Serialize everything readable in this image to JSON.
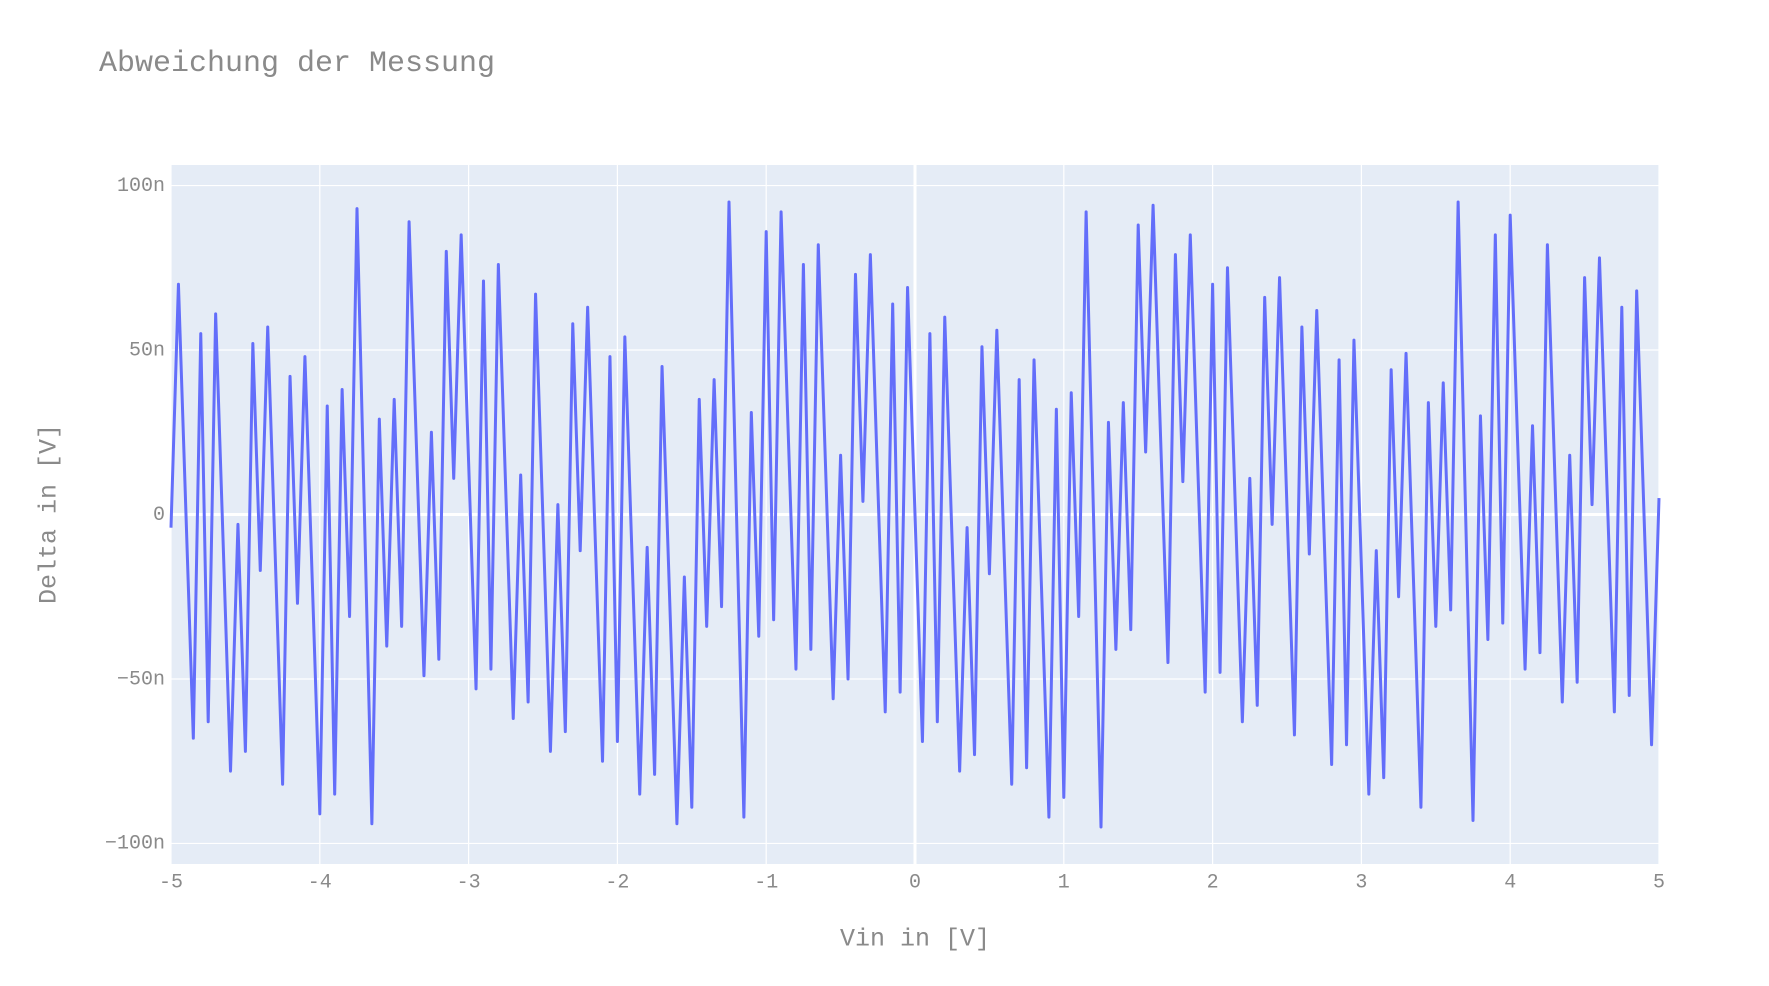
{
  "chart_data": {
    "type": "line",
    "title": "Abweichung der Messung",
    "x_label": "Vin in [V]",
    "y_label": "Delta in [V]",
    "color": "#636efa",
    "grid": true,
    "xlim": [
      -5,
      5
    ],
    "xticks": [
      -5,
      -4,
      -3,
      -2,
      -1,
      0,
      1,
      2,
      3,
      4,
      5
    ],
    "ylim": [
      -1.0625e-07,
      1.0625e-07
    ],
    "yticks": [
      {
        "value": -1e-07,
        "label": "−100n"
      },
      {
        "value": -5e-08,
        "label": "−50n"
      },
      {
        "value": 0,
        "label": "0"
      },
      {
        "value": 5e-08,
        "label": "50n"
      },
      {
        "value": 1e-07,
        "label": "100n"
      }
    ],
    "x": [
      -5,
      -4.95,
      -4.9,
      -4.85,
      -4.8,
      -4.75,
      -4.7,
      -4.65,
      -4.6,
      -4.55,
      -4.5,
      -4.45,
      -4.4,
      -4.35,
      -4.3,
      -4.25,
      -4.2,
      -4.15,
      -4.1,
      -4.05,
      -4,
      -3.95,
      -3.9,
      -3.85,
      -3.8,
      -3.75,
      -3.7,
      -3.65,
      -3.6,
      -3.55,
      -3.5,
      -3.45,
      -3.4,
      -3.35,
      -3.3,
      -3.25,
      -3.2,
      -3.15,
      -3.1,
      -3.05,
      -3,
      -2.95,
      -2.9,
      -2.85,
      -2.8,
      -2.75,
      -2.7,
      -2.65,
      -2.6,
      -2.55,
      -2.5,
      -2.45,
      -2.4,
      -2.35,
      -2.3,
      -2.25,
      -2.2,
      -2.15,
      -2.1,
      -2.05,
      -2,
      -1.95,
      -1.9,
      -1.85,
      -1.8,
      -1.75,
      -1.7,
      -1.65,
      -1.6,
      -1.55,
      -1.5,
      -1.45,
      -1.4,
      -1.35,
      -1.3,
      -1.25,
      -1.2,
      -1.15,
      -1.1,
      -1.05,
      -1,
      -0.95,
      -0.9,
      -0.85,
      -0.8,
      -0.75,
      -0.7,
      -0.65,
      -0.6,
      -0.55,
      -0.5,
      -0.45,
      -0.4,
      -0.35,
      -0.3,
      -0.25,
      -0.2,
      -0.15,
      -0.1,
      -0.05,
      0,
      0.05,
      0.1,
      0.15,
      0.2,
      0.25,
      0.3,
      0.35,
      0.4,
      0.45,
      0.5,
      0.55,
      0.6,
      0.65,
      0.7,
      0.75,
      0.8,
      0.85,
      0.9,
      0.95,
      1,
      1.05,
      1.1,
      1.15,
      1.2,
      1.25,
      1.3,
      1.35,
      1.4,
      1.45,
      1.5,
      1.55,
      1.6,
      1.65,
      1.7,
      1.75,
      1.8,
      1.85,
      1.9,
      1.95,
      2,
      2.05,
      2.1,
      2.15,
      2.2,
      2.25,
      2.3,
      2.35,
      2.4,
      2.45,
      2.5,
      2.55,
      2.6,
      2.65,
      2.7,
      2.75,
      2.8,
      2.85,
      2.9,
      2.95,
      3,
      3.05,
      3.1,
      3.15,
      3.2,
      3.25,
      3.3,
      3.35,
      3.4,
      3.45,
      3.5,
      3.55,
      3.6,
      3.65,
      3.7,
      3.75,
      3.8,
      3.85,
      3.9,
      3.95,
      4,
      4.05,
      4.1,
      4.15,
      4.2,
      4.25,
      4.3,
      4.35,
      4.4,
      4.45,
      4.5,
      4.55,
      4.6,
      4.65,
      4.7,
      4.75,
      4.8,
      4.85,
      4.9,
      4.95,
      5
    ],
    "values": [
      -4e-09,
      7e-08,
      1e-09,
      -6.8e-08,
      5.5e-08,
      -6.3e-08,
      6.1e-08,
      -8e-09,
      -7.8e-08,
      -3e-09,
      -7.2e-08,
      5.2e-08,
      -1.7e-08,
      5.7e-08,
      -1.2e-08,
      -8.2e-08,
      4.2e-08,
      -2.7e-08,
      4.8e-08,
      -2.1e-08,
      -9.1e-08,
      3.3e-08,
      -8.5e-08,
      3.8e-08,
      -3.1e-08,
      9.3e-08,
      0,
      -9.4e-08,
      2.9e-08,
      -4e-08,
      3.5e-08,
      -3.4e-08,
      8.9e-08,
      2e-08,
      -4.9e-08,
      2.5e-08,
      -4.4e-08,
      8e-08,
      1.1e-08,
      8.5e-08,
      1.6e-08,
      -5.3e-08,
      7.1e-08,
      -4.7e-08,
      7.6e-08,
      7e-09,
      -6.2e-08,
      1.2e-08,
      -5.7e-08,
      6.7e-08,
      -2e-09,
      -7.2e-08,
      3e-09,
      -6.6e-08,
      5.8e-08,
      -1.1e-08,
      6.3e-08,
      -6e-09,
      -7.5e-08,
      4.8e-08,
      -6.9e-08,
      5.4e-08,
      -1.5e-08,
      -8.5e-08,
      -1e-08,
      -7.9e-08,
      4.5e-08,
      -2.4e-08,
      -9.4e-08,
      -1.9e-08,
      -8.9e-08,
      3.5e-08,
      -3.4e-08,
      4.1e-08,
      -2.8e-08,
      9.5e-08,
      1e-09,
      -9.2e-08,
      3.1e-08,
      -3.7e-08,
      8.6e-08,
      -3.2e-08,
      9.2e-08,
      2.2e-08,
      -4.7e-08,
      7.6e-08,
      -4.1e-08,
      8.2e-08,
      1.3e-08,
      -5.6e-08,
      1.8e-08,
      -5e-08,
      7.3e-08,
      4e-09,
      7.9e-08,
      9e-09,
      -6e-08,
      6.4e-08,
      -5.4e-08,
      6.9e-08,
      0,
      -6.9e-08,
      5.5e-08,
      -6.3e-08,
      6e-08,
      -9e-09,
      -7.8e-08,
      -4e-09,
      -7.3e-08,
      5.1e-08,
      -1.8e-08,
      5.6e-08,
      -1.3e-08,
      -8.2e-08,
      4.1e-08,
      -7.7e-08,
      4.7e-08,
      -2.2e-08,
      -9.2e-08,
      3.2e-08,
      -8.6e-08,
      3.7e-08,
      -3.1e-08,
      9.2e-08,
      -1e-09,
      -9.5e-08,
      2.8e-08,
      -4.1e-08,
      3.4e-08,
      -3.5e-08,
      8.8e-08,
      1.9e-08,
      9.4e-08,
      2.4e-08,
      -4.5e-08,
      7.9e-08,
      1e-08,
      8.5e-08,
      1.5e-08,
      -5.4e-08,
      7e-08,
      -4.8e-08,
      7.5e-08,
      6e-09,
      -6.3e-08,
      1.1e-08,
      -5.8e-08,
      6.6e-08,
      -3e-09,
      7.2e-08,
      2e-09,
      -6.7e-08,
      5.7e-08,
      -1.2e-08,
      6.2e-08,
      -7e-09,
      -7.6e-08,
      4.7e-08,
      -7e-08,
      5.3e-08,
      -1.6e-08,
      -8.5e-08,
      -1.1e-08,
      -8e-08,
      4.4e-08,
      -2.5e-08,
      4.9e-08,
      -2e-08,
      -8.9e-08,
      3.4e-08,
      -3.4e-08,
      4e-08,
      -2.9e-08,
      9.5e-08,
      1e-09,
      -9.3e-08,
      3e-08,
      -3.8e-08,
      8.5e-08,
      -3.3e-08,
      9.1e-08,
      2.2e-08,
      -4.7e-08,
      2.7e-08,
      -4.2e-08,
      8.2e-08,
      1.2e-08,
      -5.7e-08,
      1.8e-08,
      -5.1e-08,
      7.2e-08,
      3e-09,
      7.8e-08,
      9e-09,
      -6e-08,
      6.3e-08,
      -5.5e-08,
      6.8e-08,
      -1e-09,
      -7e-08,
      5e-09
    ]
  }
}
